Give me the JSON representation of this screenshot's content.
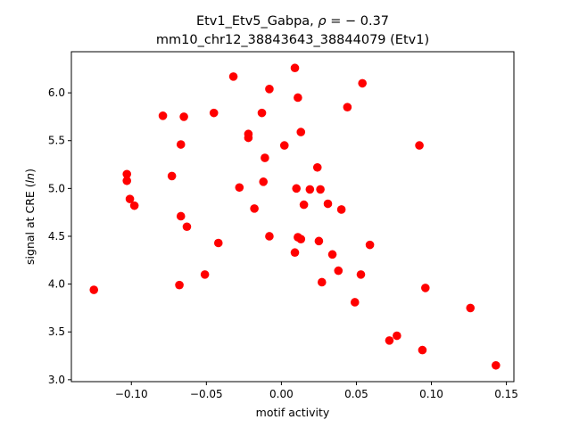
{
  "chart_data": {
    "type": "scatter",
    "title_line1_prefix": "Etv1_Etv5_Gabpa, ",
    "title_line1_rho": "ρ",
    "title_line1_suffix": " = − 0.37",
    "title_line2": "mm10_chr12_38843643_38844079 (Etv1)",
    "xlabel": "motif activity",
    "ylabel_prefix": "signal at CRE (",
    "ylabel_italic": "ln",
    "ylabel_suffix": ")",
    "xlim": [
      -0.14,
      0.155
    ],
    "ylim": [
      2.98,
      6.43
    ],
    "xticks": [
      {
        "value": -0.1,
        "label": "−0.10"
      },
      {
        "value": -0.05,
        "label": "−0.05"
      },
      {
        "value": 0.0,
        "label": "0.00"
      },
      {
        "value": 0.05,
        "label": "0.05"
      },
      {
        "value": 0.1,
        "label": "0.10"
      },
      {
        "value": 0.15,
        "label": "0.15"
      }
    ],
    "yticks": [
      {
        "value": 3.0,
        "label": "3.0"
      },
      {
        "value": 3.5,
        "label": "3.5"
      },
      {
        "value": 4.0,
        "label": "4.0"
      },
      {
        "value": 4.5,
        "label": "4.5"
      },
      {
        "value": 5.0,
        "label": "5.0"
      },
      {
        "value": 5.5,
        "label": "5.5"
      },
      {
        "value": 6.0,
        "label": "6.0"
      }
    ],
    "marker_color": "#ff0000",
    "grid": false,
    "points": [
      {
        "x": -0.125,
        "y": 3.94
      },
      {
        "x": -0.103,
        "y": 5.15
      },
      {
        "x": -0.103,
        "y": 5.08
      },
      {
        "x": -0.101,
        "y": 4.89
      },
      {
        "x": -0.098,
        "y": 4.82
      },
      {
        "x": -0.079,
        "y": 5.76
      },
      {
        "x": -0.073,
        "y": 5.13
      },
      {
        "x": -0.068,
        "y": 3.99
      },
      {
        "x": -0.067,
        "y": 5.46
      },
      {
        "x": -0.067,
        "y": 4.71
      },
      {
        "x": -0.065,
        "y": 5.75
      },
      {
        "x": -0.063,
        "y": 4.6
      },
      {
        "x": -0.051,
        "y": 4.1
      },
      {
        "x": -0.045,
        "y": 5.79
      },
      {
        "x": -0.042,
        "y": 4.43
      },
      {
        "x": -0.032,
        "y": 6.17
      },
      {
        "x": -0.028,
        "y": 5.01
      },
      {
        "x": -0.022,
        "y": 5.57
      },
      {
        "x": -0.022,
        "y": 5.53
      },
      {
        "x": -0.018,
        "y": 4.79
      },
      {
        "x": -0.013,
        "y": 5.79
      },
      {
        "x": -0.012,
        "y": 5.07
      },
      {
        "x": -0.011,
        "y": 5.32
      },
      {
        "x": -0.008,
        "y": 6.04
      },
      {
        "x": -0.008,
        "y": 4.5
      },
      {
        "x": 0.002,
        "y": 5.45
      },
      {
        "x": 0.009,
        "y": 6.26
      },
      {
        "x": 0.009,
        "y": 4.33
      },
      {
        "x": 0.01,
        "y": 5.0
      },
      {
        "x": 0.011,
        "y": 5.95
      },
      {
        "x": 0.011,
        "y": 4.49
      },
      {
        "x": 0.013,
        "y": 5.59
      },
      {
        "x": 0.013,
        "y": 4.47
      },
      {
        "x": 0.015,
        "y": 4.83
      },
      {
        "x": 0.019,
        "y": 4.99
      },
      {
        "x": 0.024,
        "y": 5.22
      },
      {
        "x": 0.025,
        "y": 4.45
      },
      {
        "x": 0.026,
        "y": 4.99
      },
      {
        "x": 0.027,
        "y": 4.02
      },
      {
        "x": 0.031,
        "y": 4.84
      },
      {
        "x": 0.034,
        "y": 4.31
      },
      {
        "x": 0.038,
        "y": 4.14
      },
      {
        "x": 0.04,
        "y": 4.78
      },
      {
        "x": 0.044,
        "y": 5.85
      },
      {
        "x": 0.049,
        "y": 3.81
      },
      {
        "x": 0.053,
        "y": 4.1
      },
      {
        "x": 0.054,
        "y": 6.1
      },
      {
        "x": 0.059,
        "y": 4.41
      },
      {
        "x": 0.072,
        "y": 3.41
      },
      {
        "x": 0.077,
        "y": 3.46
      },
      {
        "x": 0.092,
        "y": 5.45
      },
      {
        "x": 0.094,
        "y": 3.31
      },
      {
        "x": 0.096,
        "y": 3.96
      },
      {
        "x": 0.126,
        "y": 3.75
      },
      {
        "x": 0.143,
        "y": 3.15
      }
    ]
  }
}
